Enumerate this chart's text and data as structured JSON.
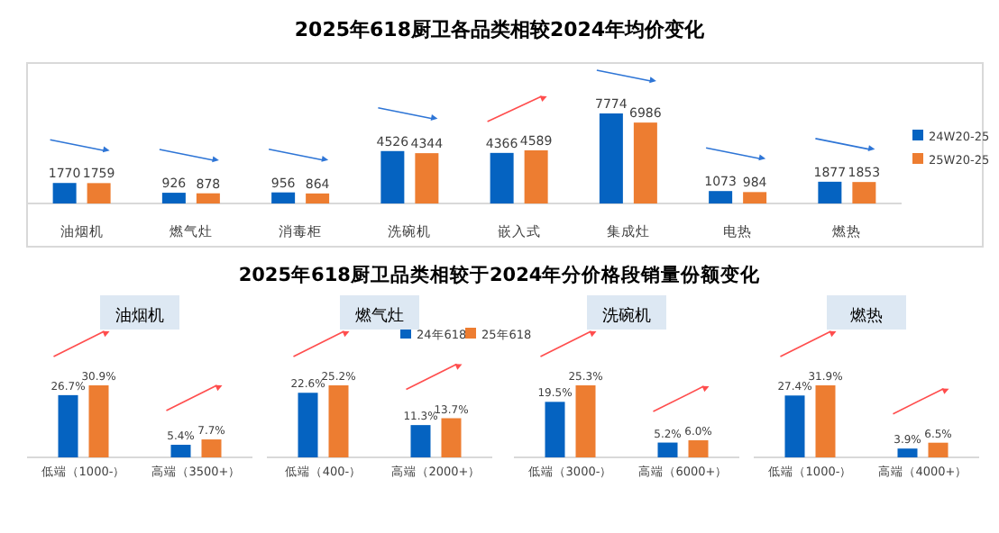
{
  "chart_data": [
    {
      "type": "bar",
      "title": "2025年618厨卫各品类相较2024年均价变化",
      "categories": [
        "油烟机",
        "燃气灶",
        "消毒柜",
        "洗碗机",
        "嵌入式",
        "集成灶",
        "电热",
        "燃热"
      ],
      "data_labels": true,
      "legend": "right",
      "series": [
        {
          "name": "24W20-25",
          "color": "#0563c1",
          "values": [
            1770,
            926,
            956,
            4526,
            4366,
            7774,
            1073,
            1877
          ]
        },
        {
          "name": "25W20-25",
          "color": "#ed7d31",
          "values": [
            1759,
            878,
            864,
            4344,
            4589,
            6986,
            984,
            1853
          ]
        }
      ]
    },
    {
      "type": "bar",
      "title": "油烟机",
      "annotations": [
        "2025年618厨卫品类相较于2024年分价格段销量份额变化"
      ],
      "categories": [
        "低端（1000-）",
        "高端（3500+）"
      ],
      "legend": "top right",
      "series": [
        {
          "name": "24年618",
          "color": "#0563c1",
          "values": [
            26.7,
            5.4
          ],
          "value_labels": [
            "26.7%",
            "5.4%"
          ]
        },
        {
          "name": "25年618",
          "color": "#ed7d31",
          "values": [
            30.9,
            7.7
          ],
          "value_labels": [
            "30.9%",
            "7.7%"
          ]
        }
      ]
    },
    {
      "type": "bar",
      "title": "燃气灶",
      "categories": [
        "低端（400-）",
        "高端（2000+）"
      ],
      "series": [
        {
          "color": "#0563c1",
          "values": [
            22.6,
            11.3
          ],
          "value_labels": [
            "22.6%",
            "11.3%"
          ]
        },
        {
          "color": "#ed7d31",
          "values": [
            25.2,
            13.7
          ],
          "value_labels": [
            "25.2%",
            "13.7%"
          ]
        }
      ]
    },
    {
      "type": "bar",
      "title": "洗碗机",
      "categories": [
        "低端（3000-）",
        "高端（6000+）"
      ],
      "series": [
        {
          "color": "#0563c1",
          "values": [
            19.5,
            5.2
          ],
          "value_labels": [
            "19.5%",
            "5.2%"
          ]
        },
        {
          "color": "#ed7d31",
          "values": [
            25.3,
            6.0
          ],
          "value_labels": [
            "25.3%",
            "6.0%"
          ]
        }
      ]
    },
    {
      "type": "bar",
      "title": "燃热",
      "categories": [
        "低端（1000-）",
        "高端（4000+）"
      ],
      "series": [
        {
          "color": "#0563c1",
          "values": [
            27.4,
            3.9
          ],
          "value_labels": [
            "27.4%",
            "3.9%"
          ]
        },
        {
          "color": "#ed7d31",
          "values": [
            31.9,
            6.5
          ],
          "value_labels": [
            "31.9%",
            "6.5%"
          ]
        }
      ]
    }
  ]
}
